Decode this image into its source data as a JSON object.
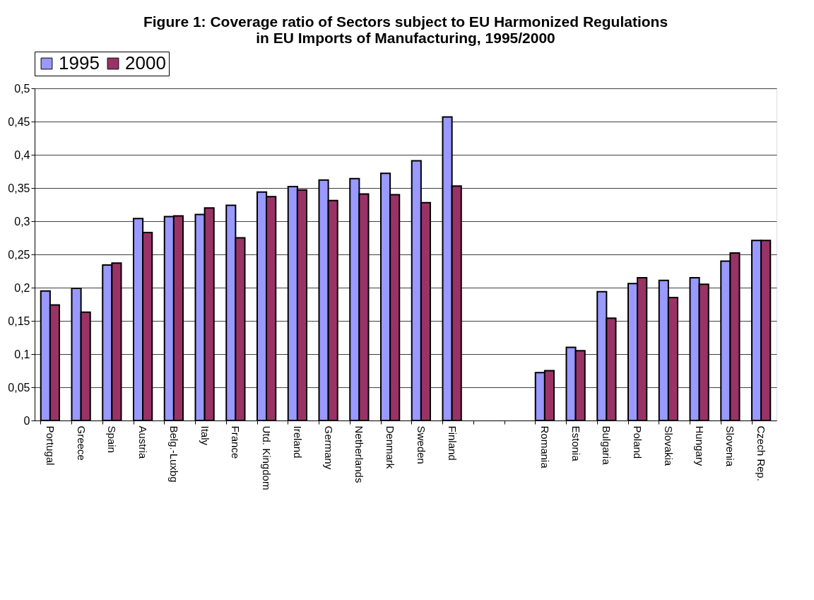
{
  "chart_data": {
    "type": "bar",
    "title": "Figure 1: Coverage ratio of Sectors subject to EU Harmonized Regulations in EU Imports of Manufacturing, 1995/2000",
    "categories": [
      "Portugal",
      "Greece",
      "Spain",
      "Austria",
      "Belg.-Luxbg",
      "Italy",
      "France",
      "Utd. Kingdom",
      "Ireland",
      "Germany",
      "Netherlands",
      "Denmark",
      "Sweden",
      "Finland",
      null,
      null,
      "Romania",
      "Estonia",
      "Bulgaria",
      "Poland",
      "Slovakia",
      "Hungary",
      "Slovenia",
      "Czech Rep."
    ],
    "series": [
      {
        "name": "1995",
        "color": "#9999ff",
        "values": [
          0.195,
          0.199,
          0.234,
          0.304,
          0.307,
          0.31,
          0.324,
          0.344,
          0.352,
          0.362,
          0.364,
          0.372,
          0.391,
          0.457,
          null,
          null,
          0.072,
          0.11,
          0.194,
          0.206,
          0.211,
          0.215,
          0.24,
          0.271
        ]
      },
      {
        "name": "2000",
        "color": "#993366",
        "values": [
          0.174,
          0.163,
          0.237,
          0.283,
          0.308,
          0.32,
          0.275,
          0.337,
          0.347,
          0.331,
          0.341,
          0.34,
          0.328,
          0.353,
          null,
          null,
          0.075,
          0.105,
          0.154,
          0.215,
          0.185,
          0.205,
          0.252,
          0.271
        ]
      }
    ],
    "ylim": [
      0,
      0.5
    ],
    "yticks": [
      {
        "value": 0,
        "label": "0"
      },
      {
        "value": 0.05,
        "label": "0,05"
      },
      {
        "value": 0.1,
        "label": "0,1"
      },
      {
        "value": 0.15,
        "label": "0,15"
      },
      {
        "value": 0.2,
        "label": "0,2"
      },
      {
        "value": 0.25,
        "label": "0,25"
      },
      {
        "value": 0.3,
        "label": "0,3"
      },
      {
        "value": 0.35,
        "label": "0,35"
      },
      {
        "value": 0.4,
        "label": "0,4"
      },
      {
        "value": 0.45,
        "label": "0,45"
      },
      {
        "value": 0.5,
        "label": "0,5"
      }
    ],
    "grid": "y",
    "legend": "top"
  }
}
